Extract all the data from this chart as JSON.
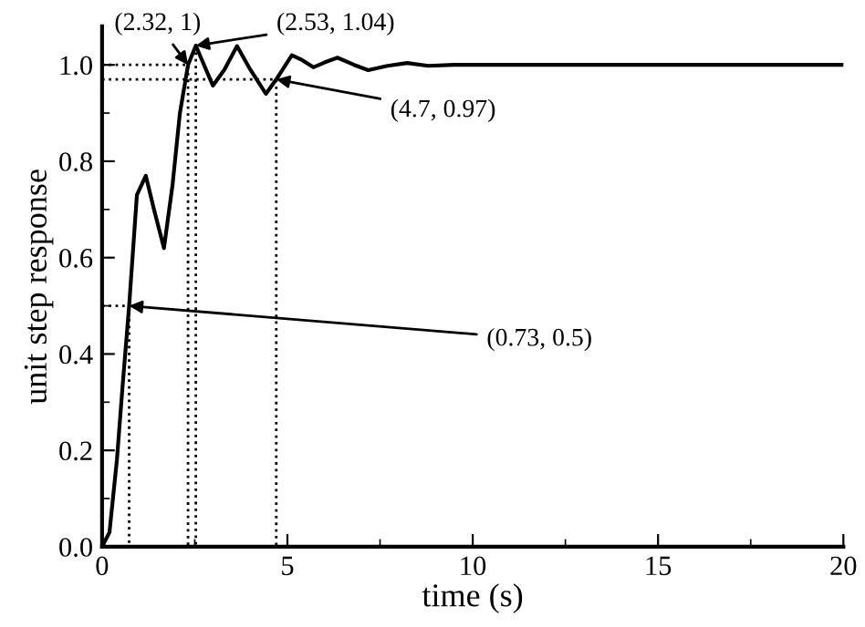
{
  "chart_data": {
    "type": "line",
    "xlabel": "time (s)",
    "ylabel": "unit step response",
    "xlim": [
      0,
      20
    ],
    "ylim": [
      0,
      1.08
    ],
    "xticks": [
      0,
      5,
      10,
      15,
      20
    ],
    "yticks": [
      {
        "value": 0,
        "label": "0.0"
      },
      {
        "value": 0.2,
        "label": "0.2"
      },
      {
        "value": 0.4,
        "label": "0.4"
      },
      {
        "value": 0.6,
        "label": "0.6"
      },
      {
        "value": 0.8,
        "label": "0.8"
      },
      {
        "value": 1,
        "label": "1.0"
      }
    ],
    "grid": false,
    "legend": false,
    "marker": "none",
    "line_style": "solid",
    "series": [
      {
        "color": "#000000",
        "x": [
          0,
          0.2,
          0.4,
          0.55,
          0.73,
          0.94,
          1.18,
          1.4,
          1.67,
          1.9,
          2.1,
          2.32,
          2.53,
          2.75,
          2.99,
          3.3,
          3.64,
          4.0,
          4.42,
          4.7,
          5.12,
          5.4,
          5.7,
          6.0,
          6.35,
          6.8,
          7.18,
          7.7,
          8.23,
          8.8,
          9.5,
          12,
          15,
          20
        ],
        "values": [
          0,
          0.03,
          0.18,
          0.33,
          0.5,
          0.73,
          0.77,
          0.7,
          0.62,
          0.75,
          0.9,
          1.0,
          1.04,
          1.0,
          0.957,
          0.99,
          1.039,
          0.99,
          0.94,
          0.97,
          1.02,
          1.01,
          0.995,
          1.005,
          1.015,
          1.0,
          0.989,
          0.998,
          1.004,
          0.998,
          1.0,
          1.0,
          1.0,
          1.0
        ]
      },
      {
        "color": "#000000",
        "line_style": "dotted",
        "x": [
          0,
          0.73,
          0.73
        ],
        "values": [
          0.5,
          0.5,
          0
        ]
      },
      {
        "color": "#000000",
        "line_style": "dotted",
        "x": [
          0,
          2.32,
          2.32
        ],
        "values": [
          1.0,
          1.0,
          0
        ]
      },
      {
        "color": "#000000",
        "line_style": "dotted",
        "x": [
          2.53,
          2.53
        ],
        "values": [
          1.04,
          0
        ]
      },
      {
        "color": "#000000",
        "line_style": "dotted",
        "x": [
          0,
          4.7,
          4.7
        ],
        "values": [
          0.97,
          0.97,
          0
        ]
      }
    ],
    "annotations": [
      {
        "text": "(2.32, 1)",
        "x": 2.32,
        "y": 1.0
      },
      {
        "text": "(2.53, 1.04)",
        "x": 2.53,
        "y": 1.04
      },
      {
        "text": "(4.7, 0.97)",
        "x": 4.7,
        "y": 0.97
      },
      {
        "text": "(0.73, 0.5)",
        "x": 0.73,
        "y": 0.5
      }
    ]
  }
}
